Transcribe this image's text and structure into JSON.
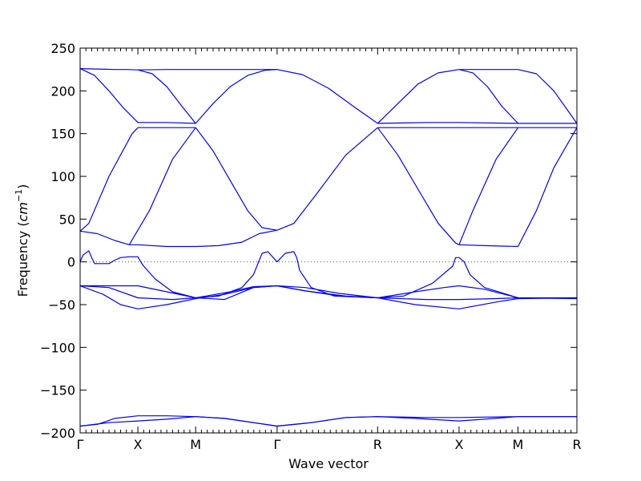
{
  "chart_data": {
    "type": "line",
    "title": "",
    "xlabel": "Wave vector",
    "ylabel": "Frequency (cm⁻¹)",
    "ylabel_parts": {
      "prefix": "Frequency (",
      "unit": "cm",
      "exponent": "−1",
      "suffix": ")"
    },
    "ylim": [
      -200,
      250
    ],
    "yticks": [
      -200,
      -150,
      -100,
      -50,
      0,
      50,
      100,
      150,
      200,
      250
    ],
    "ytick_labels": [
      "−200",
      "−150",
      "−100",
      "−50",
      "0",
      "50",
      "100",
      "150",
      "200",
      "250"
    ],
    "xlim": [
      0,
      8.6
    ],
    "high_symmetry_points": [
      {
        "label": "Γ",
        "x": 0
      },
      {
        "label": "X",
        "x": 1
      },
      {
        "label": "M",
        "x": 2
      },
      {
        "label": "Γ",
        "x": 3.41
      },
      {
        "label": "R",
        "x": 5.15
      },
      {
        "label": "X",
        "x": 6.56
      },
      {
        "label": "M",
        "x": 7.58
      },
      {
        "label": "R",
        "x": 8.6
      }
    ],
    "zero_line": {
      "y": 0,
      "style": "dotted",
      "color": "#555555"
    },
    "grid": false,
    "legend": "none",
    "line_color": "#0000ff",
    "series": [
      {
        "x": [
          0,
          0.3,
          0.6,
          0.8,
          1.0,
          1.5,
          2.0,
          2.4,
          2.8,
          3.2,
          3.41
        ],
        "y": [
          226,
          225.5,
          225,
          225,
          224.5,
          225,
          225,
          225,
          225,
          225,
          225
        ]
      },
      {
        "x": [
          0,
          0.25,
          0.5,
          0.75,
          1.0,
          1.5,
          2.0
        ],
        "y": [
          226,
          218,
          200,
          180,
          163,
          163,
          162
        ]
      },
      {
        "x": [
          1.0,
          1.25,
          1.5,
          1.75,
          2.0
        ],
        "y": [
          224.5,
          220,
          205,
          183,
          162
        ]
      },
      {
        "x": [
          2.0,
          2.3,
          2.6,
          2.9,
          3.2,
          3.41
        ],
        "y": [
          162,
          185,
          205,
          218,
          224,
          225
        ]
      },
      {
        "x": [
          3.41,
          3.85,
          4.3,
          4.75,
          5.15
        ],
        "y": [
          225,
          219,
          203,
          181,
          162
        ]
      },
      {
        "x": [
          5.15,
          5.5,
          5.85,
          6.2,
          6.56
        ],
        "y": [
          162,
          185,
          208,
          221,
          225
        ]
      },
      {
        "x": [
          6.56,
          6.8,
          7.05,
          7.3,
          7.58
        ],
        "y": [
          225,
          221,
          205,
          182,
          162
        ]
      },
      {
        "x": [
          6.56,
          7.0,
          7.58,
          7.9,
          8.2,
          8.6
        ],
        "y": [
          225,
          225,
          225,
          220,
          200,
          162
        ]
      },
      {
        "x": [
          5.15,
          6.0,
          6.56,
          7.58,
          8.6
        ],
        "y": [
          162,
          163,
          163,
          162,
          162
        ]
      },
      {
        "x": [
          0,
          0.15,
          0.5,
          0.9,
          1.0
        ],
        "y": [
          36,
          45,
          100,
          150,
          157
        ]
      },
      {
        "x": [
          0,
          0.3,
          0.6,
          0.85,
          1.0,
          1.5,
          2.0,
          2.4,
          2.8,
          3.1,
          3.41
        ],
        "y": [
          36,
          33,
          25,
          20,
          20,
          18,
          18,
          19,
          23,
          33,
          37
        ]
      },
      {
        "x": [
          0.85,
          1.2,
          1.6,
          2.0
        ],
        "y": [
          20,
          60,
          120,
          157
        ]
      },
      {
        "x": [
          1.0,
          1.5,
          2.0
        ],
        "y": [
          157,
          157,
          157
        ]
      },
      {
        "x": [
          2.0,
          2.3,
          2.6,
          2.9,
          3.15,
          3.41
        ],
        "y": [
          157,
          130,
          95,
          60,
          40,
          37
        ]
      },
      {
        "x": [
          3.41,
          3.7,
          4.1,
          4.6,
          5.15
        ],
        "y": [
          37,
          45,
          80,
          125,
          157
        ]
      },
      {
        "x": [
          5.15,
          6.0,
          6.56,
          7.58,
          8.6
        ],
        "y": [
          157,
          157,
          157,
          157,
          157
        ]
      },
      {
        "x": [
          5.15,
          5.5,
          5.85,
          6.2,
          6.5,
          6.56
        ],
        "y": [
          157,
          125,
          85,
          45,
          22,
          20
        ]
      },
      {
        "x": [
          6.56,
          6.8,
          7.2,
          7.58
        ],
        "y": [
          20,
          60,
          120,
          157
        ]
      },
      {
        "x": [
          6.56,
          7.0,
          7.58
        ],
        "y": [
          20,
          19,
          18
        ]
      },
      {
        "x": [
          7.58,
          7.9,
          8.2,
          8.6
        ],
        "y": [
          18,
          60,
          110,
          157
        ]
      },
      {
        "x": [
          0,
          0.05,
          0.15,
          0.2,
          0.25,
          0.35,
          0.5,
          0.6,
          0.7,
          0.85,
          1.0,
          1.05,
          1.1
        ],
        "y": [
          0,
          8,
          13,
          5,
          -2,
          -2,
          -2,
          2,
          5,
          6,
          6,
          0,
          -5
        ]
      },
      {
        "x": [
          1.1,
          1.3,
          1.6,
          2.0,
          2.4,
          2.8,
          3.0,
          3.15,
          3.25,
          3.41
        ],
        "y": [
          -5,
          -20,
          -35,
          -42,
          -40,
          -30,
          -15,
          10,
          12,
          0
        ]
      },
      {
        "x": [
          3.41,
          3.55,
          3.7,
          3.75,
          3.8,
          4.0,
          4.4,
          5.15
        ],
        "y": [
          0,
          10,
          12,
          5,
          -10,
          -30,
          -40,
          -42
        ]
      },
      {
        "x": [
          5.15,
          5.6,
          6.1,
          6.45,
          6.5,
          6.56,
          6.65,
          6.75,
          7.0,
          7.58
        ],
        "y": [
          -42,
          -40,
          -25,
          -5,
          5,
          5,
          0,
          -15,
          -30,
          -42
        ]
      },
      {
        "x": [
          0,
          0.5,
          1.0,
          1.6,
          2.0,
          2.6,
          3.0,
          3.41,
          3.9,
          4.5,
          5.15,
          6.0,
          6.56,
          7.2,
          7.58,
          8.6
        ],
        "y": [
          -28,
          -30,
          -42,
          -44,
          -42,
          -35,
          -29,
          -28,
          -30,
          -37,
          -42,
          -44,
          -44,
          -43,
          -42,
          -42
        ]
      },
      {
        "x": [
          0,
          0.3,
          0.6,
          1.0,
          1.5,
          2.0,
          2.5,
          3.0,
          3.41,
          3.9,
          4.5,
          5.15,
          5.8,
          6.3,
          6.56,
          7.0,
          7.58,
          8.6
        ],
        "y": [
          -28,
          -28,
          -28,
          -28,
          -35,
          -42,
          -44,
          -30,
          -28,
          -34,
          -40,
          -42,
          -35,
          -30,
          -28,
          -32,
          -42,
          -43
        ]
      },
      {
        "x": [
          0,
          0.4,
          0.7,
          1.0,
          1.5,
          2.0,
          2.5,
          3.0,
          3.41,
          3.9,
          4.6,
          5.15,
          5.8,
          6.56,
          7.2,
          7.58,
          8.6
        ],
        "y": [
          -28,
          -38,
          -50,
          -55,
          -50,
          -43,
          -38,
          -30,
          -28,
          -34,
          -40,
          -42,
          -50,
          -55,
          -47,
          -43,
          -42
        ]
      },
      {
        "x": [
          0,
          0.3,
          0.6,
          1.0,
          1.5,
          2.0,
          2.5,
          3.0,
          3.41,
          4.0,
          4.6,
          5.15,
          6.0,
          6.56,
          7.58,
          8.6
        ],
        "y": [
          -192,
          -190,
          -183,
          -180,
          -180,
          -181,
          -183,
          -188,
          -192,
          -188,
          -182,
          -181,
          -182,
          -182,
          -181,
          -181
        ]
      },
      {
        "x": [
          0,
          0.5,
          1.0,
          1.5,
          2.0,
          2.5,
          3.0,
          3.41,
          4.0,
          4.6,
          5.15,
          5.8,
          6.56,
          7.0,
          7.58,
          8.6
        ],
        "y": [
          -192,
          -188,
          -186,
          -184,
          -181,
          -183,
          -188,
          -192,
          -188,
          -182,
          -181,
          -183,
          -186,
          -184,
          -181,
          -181
        ]
      }
    ]
  }
}
